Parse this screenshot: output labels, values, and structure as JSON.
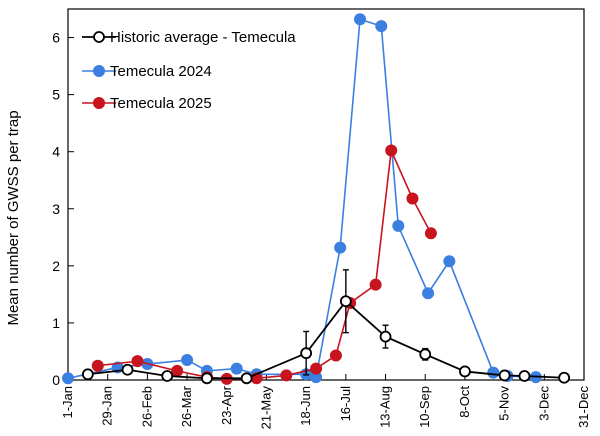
{
  "chart_data": {
    "type": "line",
    "title": "",
    "xlabel": "",
    "ylabel": "Mean number of GWSS per trap",
    "ylim": [
      0,
      6.5
    ],
    "yticks": [
      0,
      1,
      2,
      3,
      4,
      5,
      6
    ],
    "xlim": [
      "2025-01-01",
      "2025-12-31"
    ],
    "xtick_labels": [
      "1-Jan",
      "29-Jan",
      "26-Feb",
      "26-Mar",
      "23-Apr",
      "21-May",
      "18-Jun",
      "16-Jul",
      "13-Aug",
      "10-Sep",
      "8-Oct",
      "5-Nov",
      "3-Dec",
      "31-Dec"
    ],
    "xtick_dates": [
      "2025-01-01",
      "2025-01-29",
      "2025-02-26",
      "2025-03-26",
      "2025-04-23",
      "2025-05-21",
      "2025-06-18",
      "2025-07-16",
      "2025-08-13",
      "2025-09-10",
      "2025-10-08",
      "2025-11-05",
      "2025-12-03",
      "2025-12-31"
    ],
    "grid": false,
    "legend_position": "top-left",
    "series": [
      {
        "name": "Historic average - Temecula",
        "color": "#000000",
        "marker": "open-circle",
        "points": [
          {
            "x": "2025-01-15",
            "y": 0.1
          },
          {
            "x": "2025-02-12",
            "y": 0.18
          },
          {
            "x": "2025-03-12",
            "y": 0.07
          },
          {
            "x": "2025-04-09",
            "y": 0.03
          },
          {
            "x": "2025-05-07",
            "y": 0.03
          },
          {
            "x": "2025-06-18",
            "y": 0.47,
            "err": 0.38
          },
          {
            "x": "2025-07-16",
            "y": 1.38,
            "err": 0.55
          },
          {
            "x": "2025-08-13",
            "y": 0.76,
            "err": 0.2
          },
          {
            "x": "2025-09-10",
            "y": 0.45,
            "err": 0.1
          },
          {
            "x": "2025-10-08",
            "y": 0.15
          },
          {
            "x": "2025-11-05",
            "y": 0.08
          },
          {
            "x": "2025-11-19",
            "y": 0.07
          },
          {
            "x": "2025-12-17",
            "y": 0.04
          }
        ]
      },
      {
        "name": "Temecula 2024",
        "color": "#3b7fe0",
        "marker": "filled-circle",
        "points": [
          {
            "x": "2025-01-01",
            "y": 0.03
          },
          {
            "x": "2025-02-05",
            "y": 0.22
          },
          {
            "x": "2025-02-26",
            "y": 0.28
          },
          {
            "x": "2025-03-26",
            "y": 0.35
          },
          {
            "x": "2025-04-09",
            "y": 0.16
          },
          {
            "x": "2025-04-30",
            "y": 0.2
          },
          {
            "x": "2025-05-14",
            "y": 0.1
          },
          {
            "x": "2025-06-18",
            "y": 0.1
          },
          {
            "x": "2025-06-25",
            "y": 0.05
          },
          {
            "x": "2025-07-12",
            "y": 2.32
          },
          {
            "x": "2025-07-26",
            "y": 6.32
          },
          {
            "x": "2025-08-10",
            "y": 6.2
          },
          {
            "x": "2025-08-22",
            "y": 2.7
          },
          {
            "x": "2025-09-12",
            "y": 1.52
          },
          {
            "x": "2025-09-27",
            "y": 2.08
          },
          {
            "x": "2025-10-28",
            "y": 0.13
          },
          {
            "x": "2025-11-07",
            "y": 0.07
          },
          {
            "x": "2025-11-27",
            "y": 0.05
          }
        ]
      },
      {
        "name": "Temecula 2025",
        "color": "#c8141e",
        "marker": "filled-circle",
        "points": [
          {
            "x": "2025-01-22",
            "y": 0.25
          },
          {
            "x": "2025-02-19",
            "y": 0.33
          },
          {
            "x": "2025-03-19",
            "y": 0.16
          },
          {
            "x": "2025-04-09",
            "y": 0.05
          },
          {
            "x": "2025-04-23",
            "y": 0.02
          },
          {
            "x": "2025-05-14",
            "y": 0.03
          },
          {
            "x": "2025-06-04",
            "y": 0.08
          },
          {
            "x": "2025-06-25",
            "y": 0.2
          },
          {
            "x": "2025-07-09",
            "y": 0.43
          },
          {
            "x": "2025-07-19",
            "y": 1.35
          },
          {
            "x": "2025-08-06",
            "y": 1.67
          },
          {
            "x": "2025-08-17",
            "y": 4.02
          },
          {
            "x": "2025-09-01",
            "y": 3.18
          },
          {
            "x": "2025-09-14",
            "y": 2.57
          }
        ]
      }
    ]
  }
}
